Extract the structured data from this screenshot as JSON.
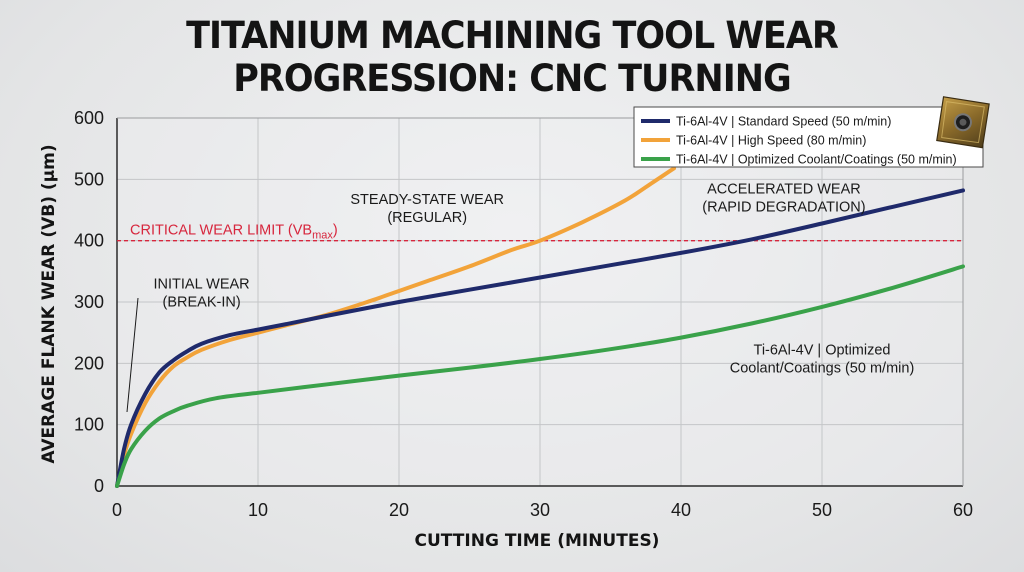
{
  "title_lines": [
    "TITANIUM MACHINING TOOL WEAR",
    "PROGRESSION: CNC TURNING"
  ],
  "chart_data": {
    "type": "line",
    "xlabel": "CUTTING TIME (MINUTES)",
    "ylabel": "AVERAGE FLANK WEAR (VB) (μm)",
    "xlim": [
      0,
      60
    ],
    "ylim": [
      0,
      600
    ],
    "x_ticks": [
      "0",
      "10",
      "20",
      "30",
      "40",
      "50",
      "60"
    ],
    "y_ticks": [
      "0",
      "100",
      "200",
      "300",
      "400",
      "500",
      "600"
    ],
    "grid": true,
    "legend_position": "top-right",
    "series": [
      {
        "name": "Ti-6Al-4V | Standard Speed (50 m/min)",
        "color": "#1f2a6b",
        "x": [
          0,
          0.5,
          1,
          2,
          3,
          4,
          5,
          6,
          8,
          10,
          12,
          15,
          20,
          25,
          30,
          35,
          40,
          45,
          50,
          55,
          60
        ],
        "y": [
          0,
          60,
          100,
          150,
          185,
          205,
          220,
          232,
          246,
          255,
          264,
          278,
          300,
          320,
          340,
          360,
          380,
          402,
          428,
          455,
          482
        ]
      },
      {
        "name": "Ti-6Al-4V | High Speed (80 m/min)",
        "color": "#f2a33a",
        "x": [
          0,
          0.5,
          1,
          2,
          3,
          4,
          5,
          6,
          8,
          10,
          12,
          15,
          18,
          20,
          22,
          25,
          28,
          30,
          33,
          36,
          38,
          39.5
        ],
        "y": [
          0,
          50,
          85,
          135,
          170,
          195,
          210,
          222,
          238,
          250,
          262,
          280,
          302,
          318,
          334,
          358,
          385,
          400,
          430,
          465,
          495,
          518
        ]
      },
      {
        "name": "Ti-6Al-4V | Optimized Coolant/Coatings (50 m/min)",
        "color": "#3aa24a",
        "x": [
          0,
          0.5,
          1,
          2,
          3,
          4,
          5,
          7,
          10,
          15,
          20,
          25,
          30,
          35,
          40,
          45,
          50,
          55,
          60
        ],
        "y": [
          0,
          35,
          60,
          90,
          110,
          122,
          131,
          143,
          152,
          166,
          180,
          193,
          207,
          223,
          242,
          265,
          292,
          323,
          358
        ]
      }
    ],
    "critical_limit": {
      "value": 400,
      "label": "CRITICAL WEAR LIMIT (VB",
      "label_sub": "max",
      "label_end": ")",
      "color": "#d7263d"
    },
    "annotations": [
      {
        "lines": [
          "INITIAL WEAR",
          "(BREAK-IN)"
        ],
        "x": 6,
        "y": 322
      },
      {
        "lines": [
          "STEADY-STATE WEAR",
          "(REGULAR)"
        ],
        "x": 22,
        "y": 460
      },
      {
        "lines": [
          "ACCELERATED WEAR",
          "(RAPID DEGRADATION)"
        ],
        "x": 47.3,
        "y": 477
      },
      {
        "lines": [
          "Ti-6Al-4V | Optimized",
          "Coolant/Coatings (50 m/min)"
        ],
        "x": 50,
        "y": 214
      }
    ]
  }
}
